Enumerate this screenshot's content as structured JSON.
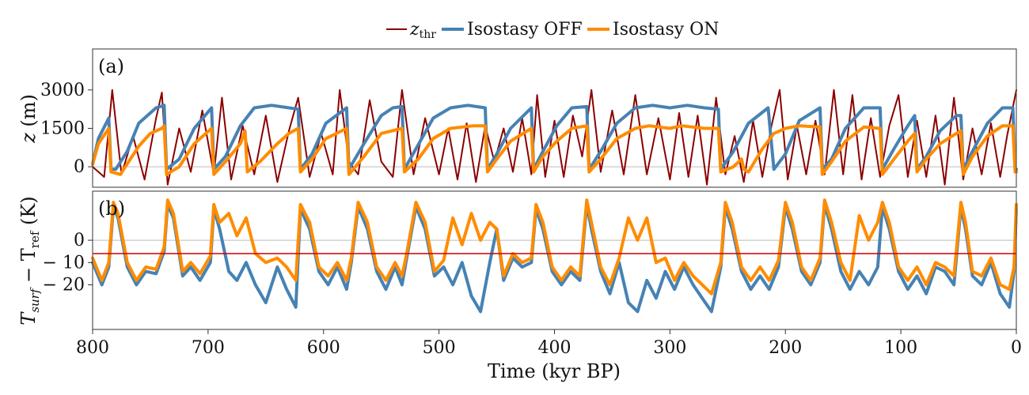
{
  "legend": {
    "items": [
      {
        "key": "z_thr",
        "label_main": "z",
        "label_sub": "thr",
        "color": "#8b0000"
      },
      {
        "key": "iso_off",
        "label_main": "Isostasy OFF",
        "label_sub": "",
        "color": "#4682b4"
      },
      {
        "key": "iso_on",
        "label_main": "Isostasy ON",
        "label_sub": "",
        "color": "#ff8c00"
      }
    ]
  },
  "x_axis": {
    "label": "Time (kyr BP)",
    "ticks": [
      800,
      700,
      600,
      500,
      400,
      300,
      200,
      100,
      0
    ],
    "reversed": true
  },
  "chart_data": [
    {
      "panel_label": "(a)",
      "type": "line",
      "ylabel_main": "z",
      "ylabel_rest": " (m)",
      "yticks": [
        0,
        1500,
        3000
      ],
      "ylim": [
        -800,
        4600
      ],
      "xlim": [
        800,
        0
      ],
      "reference_line": {
        "y": 0,
        "color": "#bbbbbb"
      },
      "grid": false,
      "series": [
        {
          "name": "z_thr",
          "color": "#8b0000",
          "x": [
            800,
            790,
            783,
            775,
            765,
            755,
            745,
            740,
            735,
            725,
            715,
            705,
            695,
            688,
            680,
            670,
            660,
            650,
            640,
            630,
            622,
            612,
            602,
            592,
            586,
            578,
            570,
            560,
            550,
            540,
            532,
            522,
            512,
            500,
            492,
            484,
            476,
            468,
            460,
            452,
            444,
            436,
            428,
            420,
            415,
            408,
            400,
            392,
            384,
            376,
            368,
            360,
            350,
            340,
            330,
            320,
            310,
            300,
            292,
            284,
            276,
            268,
            260,
            252,
            244,
            236,
            228,
            220,
            212,
            205,
            198,
            190,
            182,
            174,
            166,
            158,
            150,
            142,
            134,
            126,
            118,
            110,
            102,
            94,
            86,
            78,
            70,
            62,
            54,
            46,
            38,
            30,
            22,
            14,
            8,
            0
          ],
          "y": [
            0,
            -400,
            3000,
            -300,
            1200,
            -500,
            1900,
            2900,
            -700,
            1500,
            -200,
            2200,
            -300,
            2700,
            -500,
            1600,
            -300,
            2000,
            -600,
            1400,
            2700,
            -400,
            1300,
            -300,
            3000,
            200,
            -300,
            2600,
            200,
            -400,
            3000,
            -300,
            1900,
            -300,
            1500,
            -500,
            1700,
            -600,
            1600,
            200,
            1500,
            -200,
            1900,
            -300,
            2800,
            -400,
            1800,
            -400,
            2000,
            400,
            3000,
            -200,
            2200,
            -300,
            2800,
            -300,
            1900,
            -500,
            2100,
            -400,
            2000,
            -700,
            2700,
            -300,
            1200,
            -600,
            1800,
            -400,
            1600,
            3000,
            -500,
            1600,
            -300,
            1800,
            -300,
            3000,
            -300,
            2800,
            -500,
            1900,
            -400,
            1600,
            2800,
            -400,
            1800,
            -400,
            2000,
            -700,
            2700,
            -500,
            1500,
            -300,
            1700,
            -400,
            1200,
            3000
          ]
        },
        {
          "name": "Isostasy OFF",
          "color": "#4682b4",
          "x": [
            800,
            795,
            786,
            784,
            780,
            770,
            760,
            745,
            738,
            736,
            725,
            712,
            697,
            695,
            685,
            672,
            660,
            645,
            630,
            622,
            620,
            610,
            598,
            580,
            578,
            565,
            550,
            540,
            532,
            530,
            520,
            505,
            490,
            475,
            460,
            458,
            450,
            438,
            420,
            418,
            410,
            398,
            385,
            372,
            370,
            360,
            346,
            330,
            315,
            300,
            285,
            270,
            258,
            256,
            245,
            232,
            215,
            210,
            200,
            188,
            170,
            168,
            160,
            148,
            132,
            118,
            116,
            106,
            94,
            88,
            86,
            78,
            66,
            52,
            48,
            46,
            38,
            25,
            12,
            3,
            1,
            0
          ],
          "y": [
            100,
            1100,
            1900,
            -100,
            -100,
            600,
            1700,
            2300,
            2400,
            -100,
            300,
            1500,
            2300,
            -100,
            400,
            1600,
            2300,
            2400,
            2300,
            2250,
            -100,
            500,
            1700,
            2300,
            -100,
            900,
            2000,
            2300,
            2350,
            -100,
            700,
            1900,
            2300,
            2400,
            2300,
            -100,
            500,
            1500,
            2300,
            -100,
            600,
            1600,
            2300,
            2350,
            -100,
            600,
            1700,
            2300,
            2400,
            2300,
            2400,
            2300,
            2250,
            -100,
            600,
            1700,
            2300,
            -100,
            500,
            1800,
            2300,
            -100,
            300,
            1500,
            2300,
            2300,
            -100,
            700,
            1600,
            2000,
            -100,
            400,
            1400,
            2000,
            2000,
            -100,
            600,
            1700,
            2300,
            2300,
            -100,
            -100
          ]
        },
        {
          "name": "Isostasy ON",
          "color": "#ff8c00",
          "x": [
            800,
            795,
            786,
            784,
            776,
            760,
            750,
            740,
            738,
            736,
            725,
            712,
            697,
            695,
            685,
            672,
            668,
            666,
            655,
            640,
            630,
            622,
            620,
            610,
            598,
            580,
            578,
            565,
            550,
            532,
            530,
            518,
            505,
            490,
            470,
            460,
            458,
            450,
            438,
            420,
            418,
            410,
            398,
            385,
            372,
            370,
            360,
            346,
            330,
            318,
            300,
            290,
            270,
            258,
            256,
            245,
            238,
            236,
            232,
            220,
            210,
            200,
            188,
            170,
            168,
            160,
            148,
            132,
            118,
            116,
            106,
            94,
            88,
            86,
            78,
            66,
            52,
            48,
            46,
            38,
            25,
            12,
            3,
            1,
            0
          ],
          "y": [
            100,
            900,
            1500,
            -200,
            -300,
            800,
            1300,
            1500,
            1600,
            -300,
            0,
            900,
            1500,
            -300,
            200,
            900,
            1400,
            -200,
            200,
            900,
            1300,
            1500,
            -200,
            300,
            1100,
            1500,
            -300,
            400,
            1300,
            1500,
            -200,
            300,
            1100,
            1500,
            1600,
            1600,
            -200,
            300,
            1000,
            1500,
            -200,
            400,
            1000,
            1500,
            1600,
            -200,
            300,
            1100,
            1500,
            1600,
            1500,
            1600,
            1500,
            1500,
            -200,
            0,
            300,
            -100,
            -200,
            700,
            1300,
            1500,
            1600,
            1550,
            -300,
            200,
            1000,
            1550,
            1500,
            -300,
            300,
            1000,
            1300,
            -200,
            300,
            900,
            1300,
            1400,
            -300,
            400,
            1200,
            1600,
            1600,
            -200,
            -200
          ]
        }
      ]
    },
    {
      "panel_label": "(b)",
      "type": "line",
      "ylabel_main": "T",
      "ylabel_sub1": "surf",
      "ylabel_mid": " − T",
      "ylabel_sub2": "ref",
      "ylabel_rest": " (K)",
      "yticks": [
        0,
        -10,
        -20
      ],
      "ytick_labels": [
        "0",
        "− 10",
        "− 20"
      ],
      "ylim": [
        -40,
        22
      ],
      "xlim": [
        800,
        0
      ],
      "reference_line": {
        "y": 0,
        "color": "#bbbbbb"
      },
      "threshold_line": {
        "y": -6,
        "color": "#cc0000"
      },
      "grid": false,
      "series": [
        {
          "name": "Isostasy OFF",
          "color": "#4682b4",
          "x": [
            800,
            792,
            786,
            782,
            778,
            770,
            762,
            754,
            745,
            738,
            735,
            730,
            722,
            715,
            707,
            698,
            695,
            690,
            682,
            675,
            667,
            659,
            650,
            640,
            632,
            624,
            620,
            612,
            604,
            596,
            588,
            580,
            576,
            570,
            562,
            554,
            546,
            538,
            532,
            528,
            520,
            512,
            504,
            496,
            488,
            480,
            472,
            464,
            456,
            450,
            444,
            436,
            428,
            420,
            416,
            410,
            402,
            394,
            386,
            378,
            372,
            368,
            360,
            352,
            344,
            336,
            328,
            320,
            312,
            304,
            296,
            288,
            280,
            272,
            264,
            256,
            252,
            246,
            238,
            230,
            222,
            214,
            206,
            200,
            194,
            186,
            178,
            170,
            166,
            160,
            152,
            144,
            136,
            128,
            120,
            116,
            110,
            102,
            94,
            86,
            78,
            70,
            62,
            54,
            48,
            44,
            38,
            30,
            22,
            14,
            6,
            2,
            0
          ],
          "y": [
            -10,
            -20,
            -12,
            15,
            10,
            -12,
            -20,
            -14,
            -15,
            -5,
            16,
            10,
            -16,
            -12,
            -18,
            -10,
            14,
            5,
            -14,
            -18,
            -10,
            -20,
            -28,
            -12,
            -22,
            -30,
            14,
            5,
            -14,
            -20,
            -12,
            -22,
            -10,
            15,
            5,
            -14,
            -22,
            -12,
            -20,
            -8,
            15,
            5,
            -16,
            -12,
            -20,
            -10,
            -25,
            -32,
            -10,
            5,
            -18,
            -8,
            -12,
            -10,
            14,
            5,
            -14,
            -20,
            -14,
            -18,
            16,
            5,
            -14,
            -24,
            -10,
            -28,
            -32,
            -18,
            -26,
            -14,
            -22,
            -12,
            -20,
            -26,
            -32,
            -12,
            15,
            5,
            -14,
            -22,
            -16,
            -22,
            -12,
            15,
            5,
            -14,
            -20,
            -10,
            16,
            5,
            -14,
            -22,
            -14,
            -20,
            -12,
            15,
            5,
            -14,
            -22,
            -16,
            -24,
            -12,
            -14,
            -20,
            15,
            5,
            -16,
            -20,
            -10,
            -24,
            -30,
            -14,
            14
          ]
        },
        {
          "name": "Isostasy ON",
          "color": "#ff8c00",
          "x": [
            800,
            792,
            786,
            782,
            778,
            770,
            762,
            754,
            745,
            738,
            735,
            730,
            722,
            715,
            707,
            698,
            695,
            690,
            682,
            675,
            667,
            659,
            650,
            640,
            632,
            624,
            620,
            612,
            604,
            596,
            588,
            580,
            576,
            570,
            562,
            554,
            546,
            538,
            532,
            528,
            520,
            512,
            504,
            496,
            488,
            480,
            472,
            464,
            456,
            450,
            444,
            436,
            428,
            420,
            416,
            410,
            402,
            394,
            386,
            378,
            372,
            368,
            360,
            352,
            344,
            336,
            328,
            320,
            312,
            304,
            296,
            288,
            280,
            272,
            264,
            256,
            252,
            246,
            238,
            230,
            222,
            214,
            206,
            200,
            194,
            186,
            178,
            170,
            166,
            160,
            152,
            144,
            136,
            128,
            120,
            116,
            110,
            102,
            94,
            86,
            78,
            70,
            62,
            54,
            48,
            44,
            38,
            30,
            22,
            14,
            6,
            2,
            0
          ],
          "y": [
            -8,
            -18,
            -10,
            17,
            12,
            -10,
            -18,
            -12,
            -13,
            -3,
            18,
            12,
            -14,
            -10,
            -15,
            -7,
            16,
            8,
            12,
            2,
            10,
            -6,
            -10,
            -8,
            -12,
            -18,
            16,
            8,
            -12,
            -16,
            -10,
            -18,
            -8,
            17,
            8,
            -12,
            -18,
            -10,
            -16,
            -6,
            17,
            8,
            -14,
            -9,
            10,
            -2,
            12,
            0,
            8,
            5,
            -16,
            -6,
            -10,
            -8,
            16,
            8,
            -12,
            -18,
            -12,
            -16,
            18,
            8,
            -12,
            -20,
            -8,
            10,
            0,
            10,
            -10,
            -8,
            -18,
            -10,
            -16,
            -20,
            -24,
            -10,
            17,
            8,
            -12,
            -18,
            -12,
            -18,
            -9,
            17,
            8,
            -12,
            -18,
            -8,
            18,
            8,
            -10,
            -18,
            11,
            0,
            8,
            17,
            8,
            -12,
            -18,
            -12,
            -20,
            -10,
            -12,
            -16,
            17,
            8,
            -14,
            -16,
            -8,
            -20,
            -22,
            -12,
            16
          ]
        }
      ]
    }
  ]
}
